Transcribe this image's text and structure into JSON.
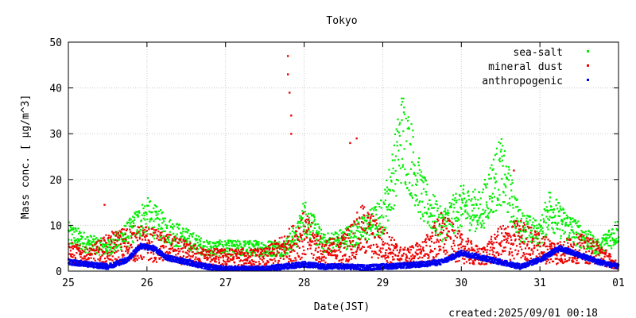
{
  "chart_data": {
    "type": "scatter",
    "title": "Tokyo",
    "xlabel": "Date(JST)",
    "ylabel": "Mass conc. [ μg/m^3]",
    "x_ticks": [
      "25",
      "26",
      "27",
      "28",
      "29",
      "30",
      "31",
      "01"
    ],
    "xlim": [
      "2025-08-25 00:00",
      "2025-09-01 00:00"
    ],
    "ylim": [
      0,
      50
    ],
    "y_ticks": [
      0,
      10,
      20,
      30,
      40,
      50
    ],
    "grid": true,
    "legend_position": "top-right",
    "footer": "created:2025/09/01 00:18",
    "series": [
      {
        "name": "sea-salt",
        "color": "#00ee00",
        "x": [
          "2025-08-25 00:00",
          "2025-08-25 06:00",
          "2025-08-25 12:00",
          "2025-08-25 18:00",
          "2025-08-25 22:00",
          "2025-08-26 00:00",
          "2025-08-26 06:00",
          "2025-08-26 12:00",
          "2025-08-26 18:00",
          "2025-08-27 00:00",
          "2025-08-27 06:00",
          "2025-08-27 12:00",
          "2025-08-27 18:00",
          "2025-08-27 22:00",
          "2025-08-28 00:00",
          "2025-08-28 06:00",
          "2025-08-28 12:00",
          "2025-08-28 18:00",
          "2025-08-29 00:00",
          "2025-08-29 03:00",
          "2025-08-29 06:00",
          "2025-08-29 09:00",
          "2025-08-29 12:00",
          "2025-08-29 18:00",
          "2025-08-30 00:00",
          "2025-08-30 06:00",
          "2025-08-30 09:00",
          "2025-08-30 12:00",
          "2025-08-30 18:00",
          "2025-08-31 00:00",
          "2025-08-31 03:00",
          "2025-08-31 06:00",
          "2025-08-31 12:00",
          "2025-08-31 18:00",
          "2025-09-01 00:00"
        ],
        "y": [
          8,
          6,
          5,
          8,
          11,
          12,
          9,
          7,
          5,
          5,
          5,
          5,
          5,
          8,
          12,
          6,
          7,
          9,
          12,
          20,
          30,
          24,
          16,
          10,
          14,
          13,
          18,
          22,
          10,
          8,
          14,
          11,
          8,
          5,
          9
        ]
      },
      {
        "name": "mineral dust",
        "color": "#ee0000",
        "x": [
          "2025-08-25 00:00",
          "2025-08-25 06:00",
          "2025-08-25 12:00",
          "2025-08-25 18:00",
          "2025-08-26 00:00",
          "2025-08-26 06:00",
          "2025-08-26 12:00",
          "2025-08-26 18:00",
          "2025-08-27 00:00",
          "2025-08-27 06:00",
          "2025-08-27 12:00",
          "2025-08-27 18:00",
          "2025-08-28 00:00",
          "2025-08-28 06:00",
          "2025-08-28 12:00",
          "2025-08-28 18:00",
          "2025-08-29 00:00",
          "2025-08-29 06:00",
          "2025-08-29 12:00",
          "2025-08-29 18:00",
          "2025-08-30 00:00",
          "2025-08-30 06:00",
          "2025-08-30 12:00",
          "2025-08-30 18:00",
          "2025-08-31 00:00",
          "2025-08-31 06:00",
          "2025-08-31 12:00",
          "2025-08-31 18:00",
          "2025-09-01 00:00"
        ],
        "y": [
          4,
          3,
          5,
          6,
          6,
          5,
          4,
          3,
          3,
          3,
          3,
          5,
          8,
          4,
          5,
          9,
          6,
          3,
          4,
          8,
          5,
          3,
          6,
          7,
          5,
          4,
          5,
          4,
          1
        ],
        "spikes": [
          {
            "x": "2025-08-27 19:00",
            "y": 47
          },
          {
            "x": "2025-08-27 19:00",
            "y": 43
          },
          {
            "x": "2025-08-27 19:30",
            "y": 39
          },
          {
            "x": "2025-08-27 20:00",
            "y": 34
          },
          {
            "x": "2025-08-27 20:00",
            "y": 30
          },
          {
            "x": "2025-08-28 14:00",
            "y": 28
          },
          {
            "x": "2025-08-28 16:00",
            "y": 29
          },
          {
            "x": "2025-08-25 11:00",
            "y": 14.5
          },
          {
            "x": "2025-08-30 16:00",
            "y": 22
          }
        ]
      },
      {
        "name": "anthropogenic",
        "color": "#0000ee",
        "x": [
          "2025-08-25 00:00",
          "2025-08-25 06:00",
          "2025-08-25 12:00",
          "2025-08-25 18:00",
          "2025-08-25 22:00",
          "2025-08-26 02:00",
          "2025-08-26 06:00",
          "2025-08-26 12:00",
          "2025-08-26 18:00",
          "2025-08-27 00:00",
          "2025-08-27 06:00",
          "2025-08-27 12:00",
          "2025-08-27 18:00",
          "2025-08-28 00:00",
          "2025-08-28 06:00",
          "2025-08-28 12:00",
          "2025-08-28 18:00",
          "2025-08-29 00:00",
          "2025-08-29 06:00",
          "2025-08-29 12:00",
          "2025-08-29 18:00",
          "2025-08-30 00:00",
          "2025-08-30 06:00",
          "2025-08-30 12:00",
          "2025-08-30 18:00",
          "2025-08-31 00:00",
          "2025-08-31 06:00",
          "2025-08-31 12:00",
          "2025-08-31 18:00",
          "2025-09-01 00:00"
        ],
        "y": [
          2,
          1.5,
          1,
          2.5,
          5.5,
          5,
          3,
          2,
          1,
          0.5,
          0.5,
          0.5,
          1,
          1.5,
          1,
          1,
          0.8,
          1,
          1.2,
          1.5,
          2,
          4,
          3,
          2,
          1,
          2.5,
          5,
          3.5,
          2,
          1
        ]
      }
    ]
  }
}
